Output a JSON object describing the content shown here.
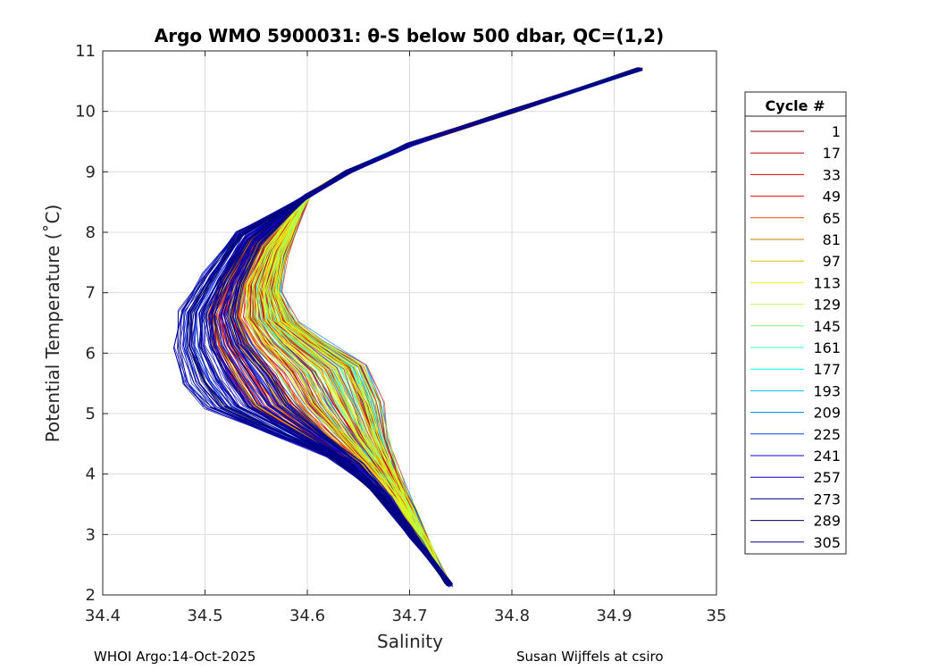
{
  "chart_data": {
    "type": "line",
    "title": "Argo WMO 5900031: θ-S below 500 dbar,  QC=(1,2)",
    "xlabel": "Salinity",
    "ylabel": "Potential Temperature (˚C)",
    "xlim": [
      34.4,
      35
    ],
    "ylim": [
      2,
      11
    ],
    "xticks": [
      "34.4",
      "34.5",
      "34.6",
      "34.7",
      "34.8",
      "34.9",
      "35"
    ],
    "yticks": [
      "2",
      "3",
      "4",
      "5",
      "6",
      "7",
      "8",
      "9",
      "10",
      "11"
    ],
    "grid": true,
    "legend_title": "Cycle #",
    "legend_position": "right-outside",
    "legend": [
      {
        "label": "1",
        "color": "#800000"
      },
      {
        "label": "17",
        "color": "#b30000"
      },
      {
        "label": "33",
        "color": "#d90000"
      },
      {
        "label": "49",
        "color": "#ff0000"
      },
      {
        "label": "65",
        "color": "#ff4000"
      },
      {
        "label": "81",
        "color": "#cc7a00"
      },
      {
        "label": "97",
        "color": "#e6b800"
      },
      {
        "label": "113",
        "color": "#ffff00"
      },
      {
        "label": "129",
        "color": "#c0ff3f"
      },
      {
        "label": "145",
        "color": "#80ff80"
      },
      {
        "label": "161",
        "color": "#40ffbf"
      },
      {
        "label": "177",
        "color": "#00ffff"
      },
      {
        "label": "193",
        "color": "#00bfff"
      },
      {
        "label": "209",
        "color": "#0080ff"
      },
      {
        "label": "225",
        "color": "#0040ff"
      },
      {
        "label": "241",
        "color": "#0000ff"
      },
      {
        "label": "257",
        "color": "#0000c0"
      },
      {
        "label": "273",
        "color": "#000090"
      },
      {
        "label": "289",
        "color": "#000060"
      },
      {
        "label": "305",
        "color": "#00008b"
      }
    ],
    "profile_shapes": {
      "upper": [
        [
          34.925,
          10.7
        ],
        [
          34.8,
          10.0
        ],
        [
          34.7,
          9.45
        ],
        [
          34.64,
          9.0
        ],
        [
          34.6,
          8.6
        ]
      ],
      "west": [
        [
          34.53,
          8.0
        ],
        [
          34.5,
          7.3
        ],
        [
          34.475,
          6.7
        ],
        [
          34.47,
          6.1
        ],
        [
          34.48,
          5.5
        ],
        [
          34.5,
          5.1
        ],
        [
          34.56,
          4.7
        ],
        [
          34.62,
          4.3
        ],
        [
          34.66,
          3.8
        ],
        [
          34.7,
          3.0
        ],
        [
          34.74,
          2.15
        ]
      ],
      "east": [
        [
          34.58,
          7.6
        ],
        [
          34.575,
          7.0
        ],
        [
          34.59,
          6.5
        ],
        [
          34.62,
          6.2
        ],
        [
          34.66,
          5.8
        ],
        [
          34.675,
          5.2
        ],
        [
          34.68,
          4.6
        ],
        [
          34.69,
          4.0
        ],
        [
          34.705,
          3.4
        ],
        [
          34.72,
          2.8
        ],
        [
          34.735,
          2.25
        ]
      ]
    }
  },
  "footer": {
    "left": "WHOI Argo:14-Oct-2025",
    "right": "Susan Wijffels at csiro"
  }
}
